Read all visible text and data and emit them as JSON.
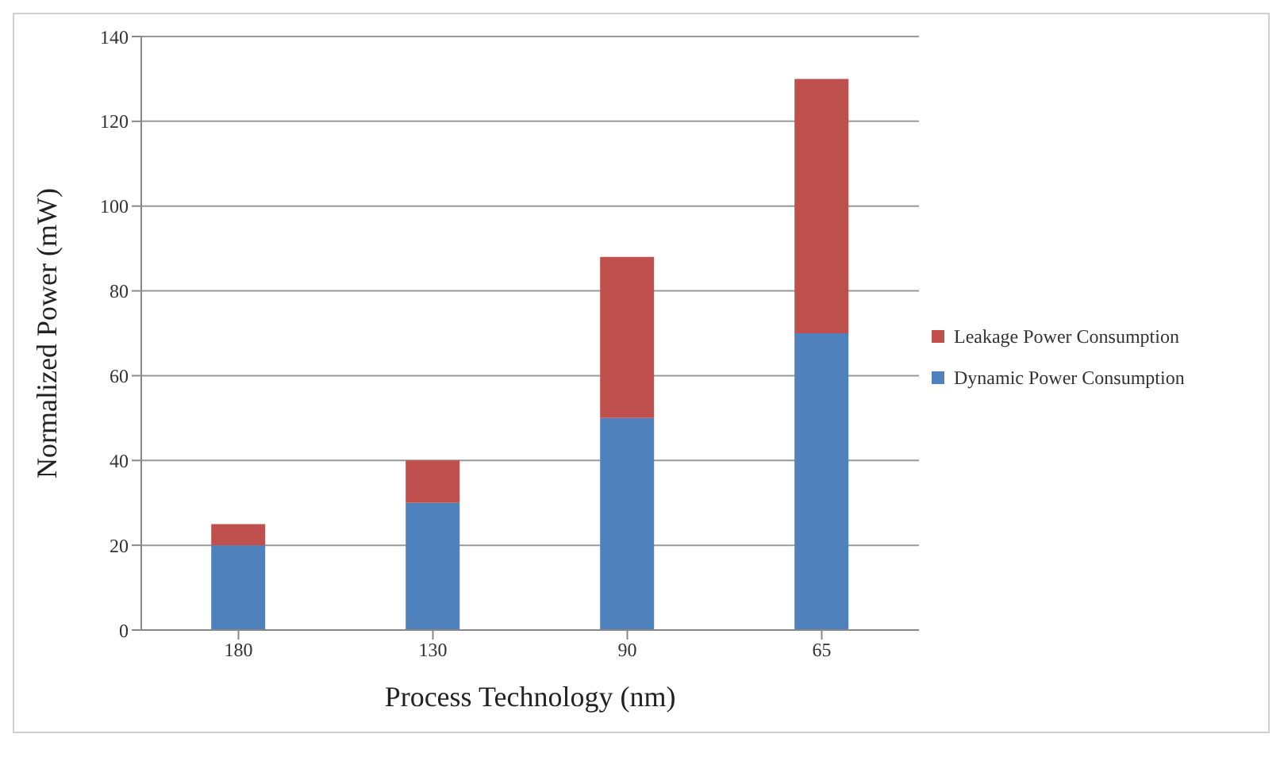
{
  "chart_data": {
    "type": "bar",
    "stacked": true,
    "xlabel": "Process Technology (nm)",
    "ylabel": "Normalized Power (mW)",
    "categories": [
      "180",
      "130",
      "90",
      "65"
    ],
    "series": [
      {
        "name": "Dynamic Power Consumption",
        "color": "#4f81bd",
        "values": [
          20,
          30,
          50,
          70
        ]
      },
      {
        "name": "Leakage Power Consumption",
        "color": "#c0504d",
        "values": [
          5,
          10,
          38,
          60
        ]
      }
    ],
    "ylim": [
      0,
      140
    ],
    "yticks": [
      0,
      20,
      40,
      60,
      80,
      100,
      120,
      140
    ],
    "grid": "y",
    "legend": "right"
  }
}
